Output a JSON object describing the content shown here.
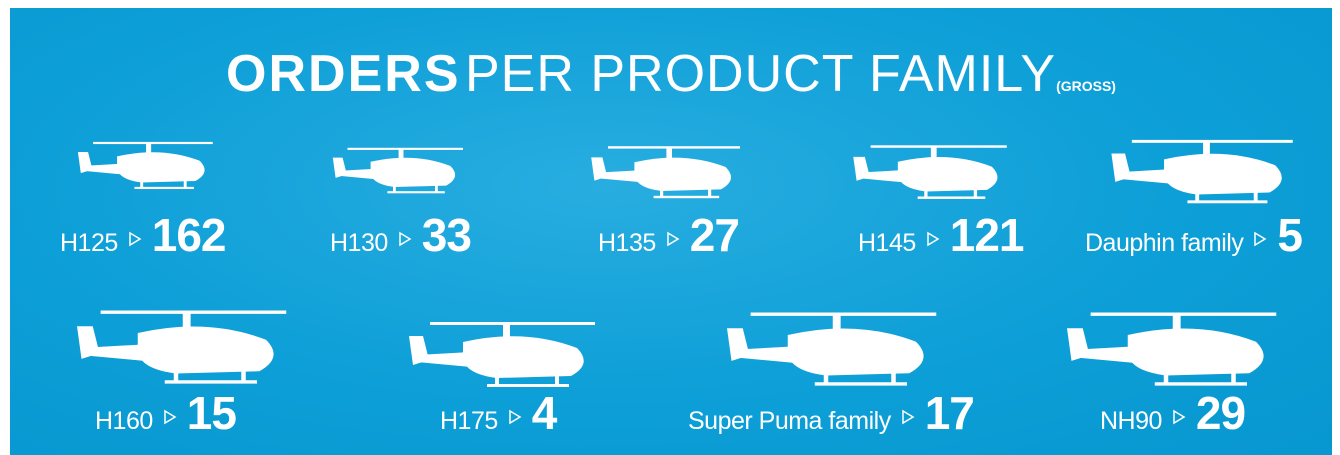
{
  "title": {
    "bold": "ORDERS",
    "light": "PER PRODUCT FAMILY",
    "note": "(GROSS)"
  },
  "items": [
    {
      "name": "H125",
      "value": 162
    },
    {
      "name": "H130",
      "value": 33
    },
    {
      "name": "H135",
      "value": 27
    },
    {
      "name": "H145",
      "value": 121
    },
    {
      "name": "Dauphin family",
      "value": 5
    },
    {
      "name": "H160",
      "value": 15
    },
    {
      "name": "H175",
      "value": 4
    },
    {
      "name": "Super Puma family",
      "value": 17
    },
    {
      "name": "NH90",
      "value": 29
    }
  ]
}
